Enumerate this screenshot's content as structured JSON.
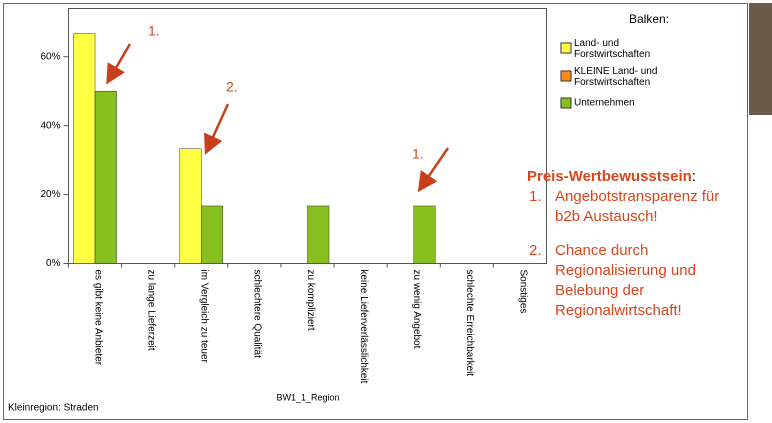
{
  "chart_data": {
    "type": "bar",
    "categories": [
      "es gibt keine Anbieter",
      "zu lange Lieferzeit",
      "im Vergleich zu teuer",
      "schlechtere Qualität",
      "zu kompliziert",
      "keine Lieferverlässlichkeit",
      "zu wenig Angebot",
      "schlechte Erreichbarkeit",
      "Sonstiges"
    ],
    "series": [
      {
        "name": "Land- und Forstwirtschaften",
        "color": "#ffff44",
        "values": [
          66.7,
          0,
          33.3,
          0,
          0,
          0,
          0,
          0,
          0
        ]
      },
      {
        "name": "KLEINE Land- und Forstwirtschaften",
        "color": "#ff8c1a",
        "values": [
          null,
          null,
          null,
          null,
          null,
          null,
          null,
          null,
          null
        ]
      },
      {
        "name": "Unternehmen",
        "color": "#88c020",
        "values": [
          50,
          0,
          16.7,
          0,
          16.7,
          0,
          16.7,
          0,
          0
        ]
      }
    ],
    "ylim": [
      0,
      74
    ],
    "yticks": [
      {
        "value": 0,
        "label": "0%"
      },
      {
        "value": 20,
        "label": "20%"
      },
      {
        "value": 40,
        "label": "40%"
      },
      {
        "value": 60,
        "label": "60%"
      }
    ],
    "legend_title": "Balken:",
    "x_label": "BW1_1_Region",
    "footnote": "Kleinregion: Straden",
    "annotations": [
      "1.",
      "2.",
      "1."
    ]
  },
  "callout": {
    "heading": "Preis-Wertbewusstsein",
    "colon": ":",
    "items": [
      {
        "number": "1.",
        "text": "Angebotstransparenz für b2b Austausch!"
      },
      {
        "number": "2.",
        "text": "Chance durch Regionalisierung und Belebung der Regionalwirtschaft!"
      }
    ]
  }
}
